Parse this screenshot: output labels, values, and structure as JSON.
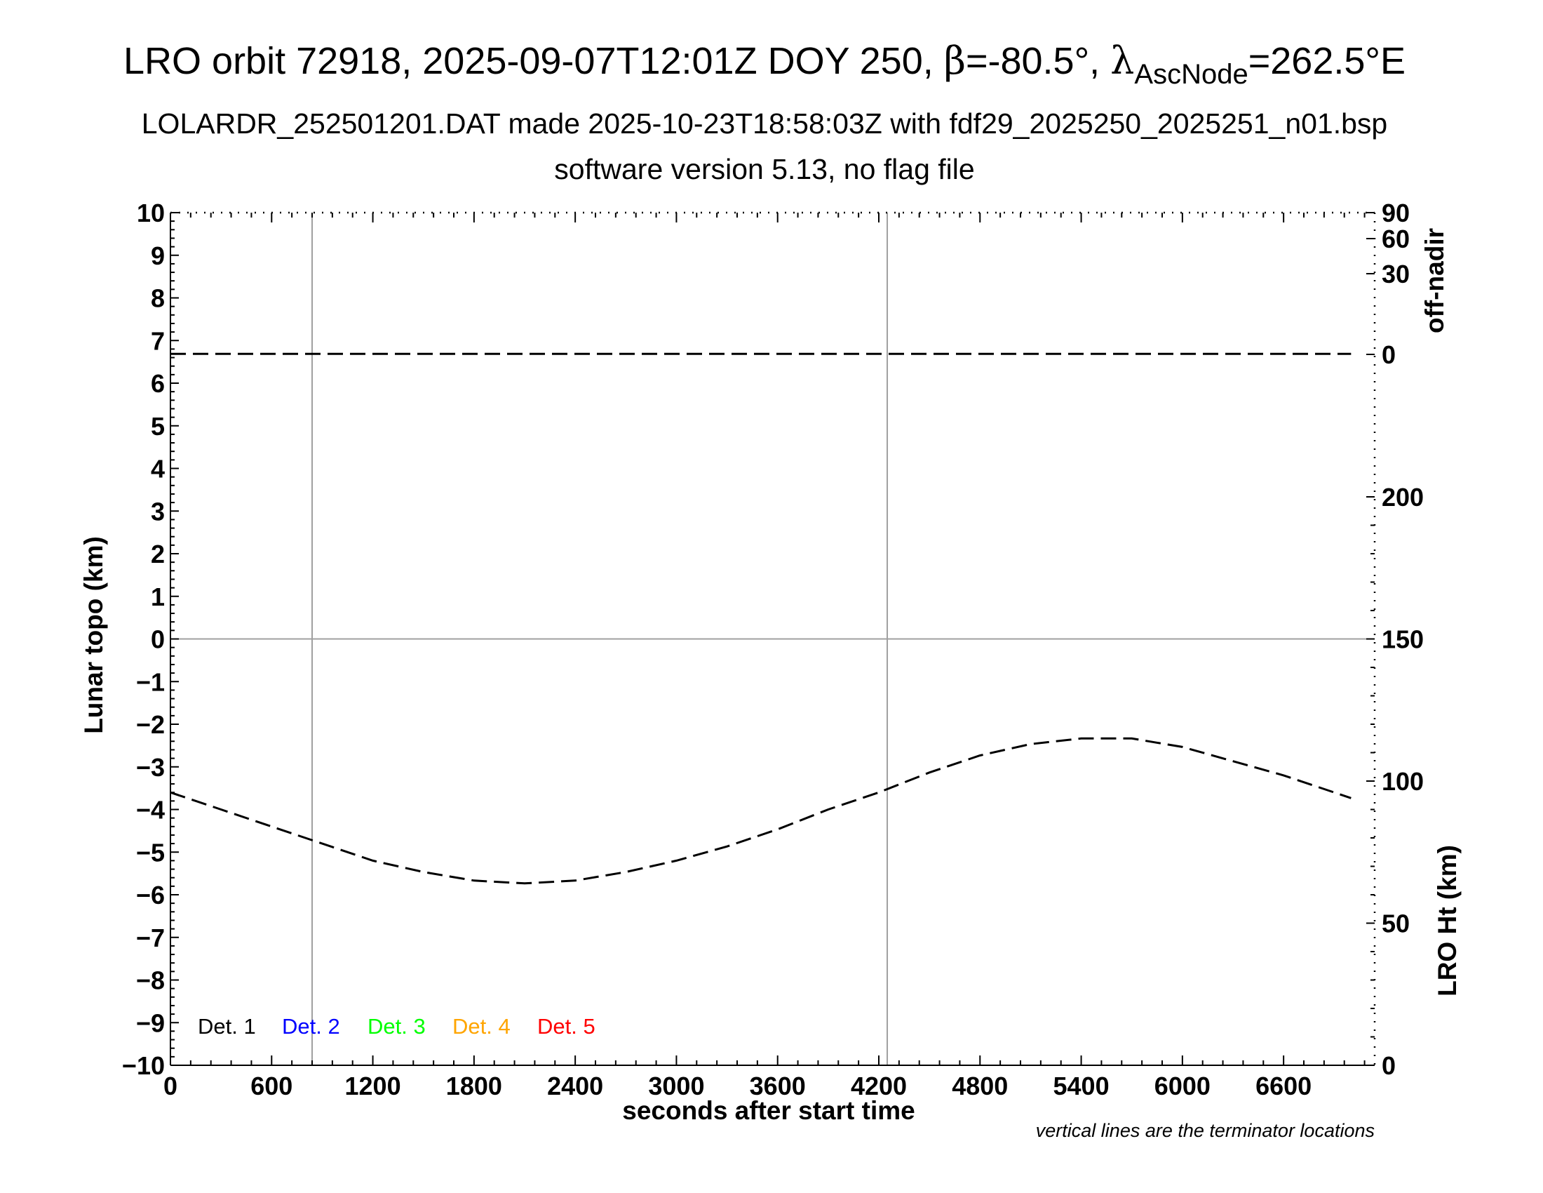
{
  "title": {
    "prefix": "LRO orbit 72918, 2025-09-07T12:01Z DOY 250, ",
    "beta_symbol": "β",
    "beta_value": "=-80.5°, ",
    "lambda_symbol": "λ",
    "lambda_subscript": "AscNode",
    "lambda_value": "=262.5°E"
  },
  "subtitle_line1": "LOLARDR_252501201.DAT made 2025-10-23T18:58:03Z with fdf29_2025250_2025251_n01.bsp",
  "subtitle_line2": "software version 5.13, no flag file",
  "footnote": "vertical lines are the terminator locations",
  "chart_data": {
    "type": "line",
    "xlabel": "seconds after start time",
    "ylabel_left": "Lunar topo (km)",
    "ylabel_right_top": "off-nadir",
    "ylabel_right_bottom": "LRO Ht (km)",
    "xlim": [
      0,
      7140
    ],
    "ylim_left": [
      -10,
      10
    ],
    "x_ticks": [
      0,
      600,
      1200,
      1800,
      2400,
      3000,
      3600,
      4200,
      4800,
      5400,
      6000,
      6600
    ],
    "y_ticks_left": [
      "10",
      "9",
      "8",
      "7",
      "6",
      "5",
      "4",
      "3",
      "2",
      "1",
      "0",
      "−1",
      "−2",
      "−3",
      "−4",
      "−5",
      "−6",
      "−7",
      "−8",
      "−9",
      "−10"
    ],
    "y_ticks_left_values": [
      10,
      9,
      8,
      7,
      6,
      5,
      4,
      3,
      2,
      1,
      0,
      -1,
      -2,
      -3,
      -4,
      -5,
      -6,
      -7,
      -8,
      -9,
      -10
    ],
    "off_nadir_ticks": [
      90,
      60,
      30,
      0
    ],
    "lro_ht_ticks": [
      200,
      150,
      100,
      50,
      0
    ],
    "lro_ht_range": [
      0,
      300
    ],
    "terminator_lines_x": [
      840,
      4250
    ],
    "zero_line_y": 0,
    "legend": [
      {
        "label": "Det. 1",
        "color": "#000000"
      },
      {
        "label": "Det. 2",
        "color": "#0000ff"
      },
      {
        "label": "Det. 3",
        "color": "#00ff00"
      },
      {
        "label": "Det. 4",
        "color": "#ffa500"
      },
      {
        "label": "Det. 5",
        "color": "#ff0000"
      }
    ],
    "series": [
      {
        "name": "off-nadir",
        "style": "dashed",
        "color": "#000000",
        "x": [
          0,
          1000,
          2000,
          3000,
          4000,
          5000,
          6000,
          7000
        ],
        "values": [
          0.2,
          0.2,
          0.2,
          0.2,
          0.2,
          0.2,
          0.2,
          0.2
        ]
      },
      {
        "name": "LRO Ht",
        "style": "dashed",
        "color": "#000000",
        "x": [
          0,
          300,
          600,
          900,
          1200,
          1500,
          1800,
          2100,
          2400,
          2700,
          3000,
          3300,
          3600,
          3900,
          4200,
          4500,
          4800,
          5100,
          5400,
          5700,
          6000,
          6300,
          6600,
          6900,
          7000
        ],
        "values": [
          96,
          90,
          84,
          78,
          72,
          68,
          65,
          64,
          65,
          68,
          72,
          77,
          83,
          90,
          96,
          103,
          109,
          113,
          115,
          115,
          112,
          107,
          102,
          96,
          94
        ]
      }
    ]
  }
}
